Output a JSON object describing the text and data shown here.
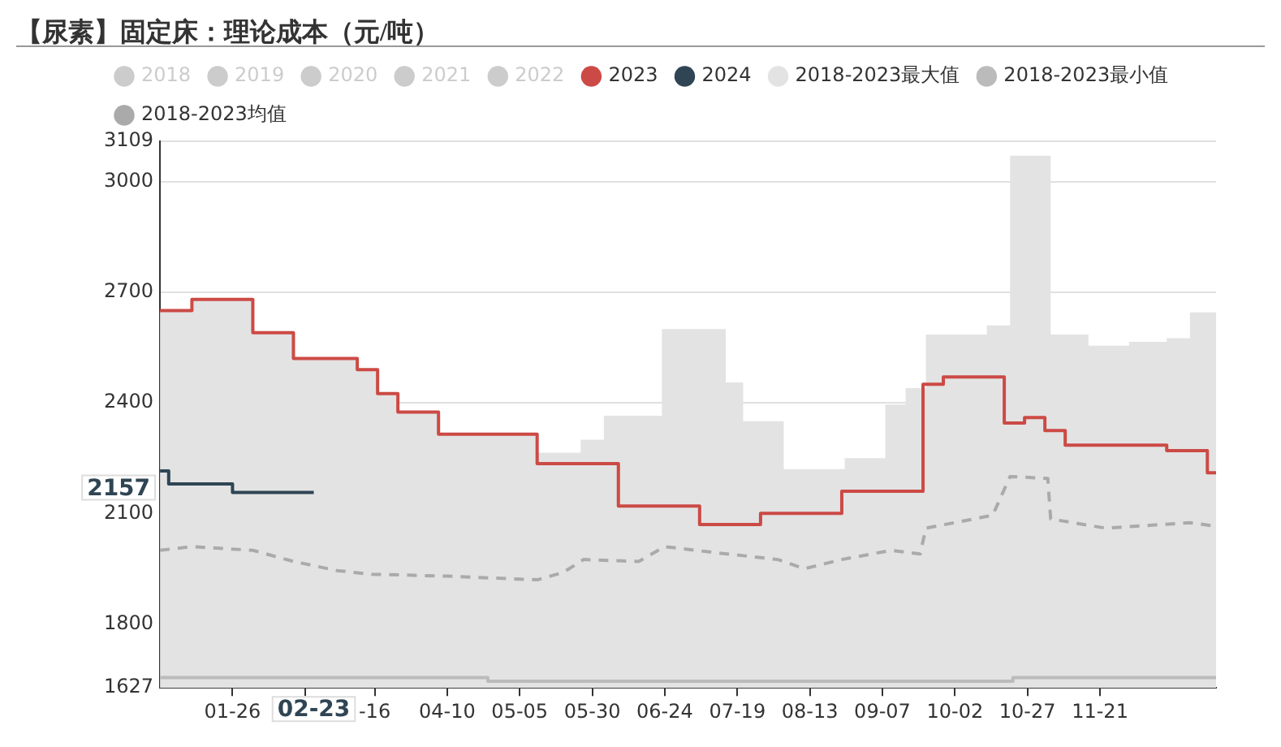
{
  "chart_data": {
    "type": "step",
    "title": "【尿素】固定床：理论成本（元/吨）",
    "xlim": [
      "--01-01",
      "--12-31"
    ],
    "xticks": [
      {
        "value": "--01-26",
        "label": "01-26"
      },
      {
        "value": "--02-20",
        "label": null
      },
      {
        "value": "--03-16",
        "label": "-16"
      },
      {
        "value": "--04-10",
        "label": "04-10"
      },
      {
        "value": "--05-05",
        "label": "05-05"
      },
      {
        "value": "--05-30",
        "label": "05-30"
      },
      {
        "value": "--06-24",
        "label": "06-24"
      },
      {
        "value": "--07-19",
        "label": "07-19"
      },
      {
        "value": "--08-13",
        "label": "08-13"
      },
      {
        "value": "--09-07",
        "label": "09-07"
      },
      {
        "value": "--10-02",
        "label": "10-02"
      },
      {
        "value": "--10-27",
        "label": "10-27"
      },
      {
        "value": "--11-21",
        "label": "11-21"
      }
    ],
    "ylim": [
      1627,
      3109
    ],
    "yticks": [
      1627,
      1800,
      2100,
      2400,
      2700,
      3000,
      3109
    ],
    "grid": "y",
    "legend": "top left",
    "marker": "none",
    "annotations": [
      "2157",
      "02-23"
    ],
    "series": [
      {
        "name": "2018",
        "color": "#cccccc"
      },
      {
        "name": "2019",
        "color": "#cccccc"
      },
      {
        "name": "2020",
        "color": "#cccccc"
      },
      {
        "name": "2021",
        "color": "#cccccc"
      },
      {
        "name": "2022",
        "color": "#cccccc"
      },
      {
        "name": "2023",
        "type": "step",
        "color": "#cc4a45",
        "x": [
          "--01-01",
          "--01-12",
          "--02-02",
          "--02-16",
          "--03-10",
          "--03-17",
          "--03-24",
          "--04-07",
          "--05-11",
          "--06-08",
          "--07-06",
          "--07-27",
          "--08-24",
          "--09-21",
          "--09-28",
          "--10-19",
          "--10-26",
          "--11-02",
          "--11-09",
          "--12-14",
          "--12-28",
          "--12-31"
        ],
        "values": [
          2650,
          2680,
          2590,
          2520,
          2490,
          2425,
          2375,
          2315,
          2235,
          2120,
          2070,
          2100,
          2160,
          2450,
          2470,
          2345,
          2360,
          2325,
          2285,
          2270,
          2210,
          2210
        ]
      },
      {
        "name": "2024",
        "type": "step",
        "color": "#2f4554",
        "x": [
          "--01-01",
          "--01-04",
          "--01-26",
          "--02-23"
        ],
        "values": [
          2215,
          2180,
          2157,
          2157
        ]
      },
      {
        "name": "2018-2023最大值",
        "type": "area",
        "color": "#e3e3e3",
        "x": [
          "--01-01",
          "--01-12",
          "--02-02",
          "--02-16",
          "--03-10",
          "--03-17",
          "--03-24",
          "--04-07",
          "--05-11",
          "--05-26",
          "--06-03",
          "--06-23",
          "--07-15",
          "--07-21",
          "--08-04",
          "--08-25",
          "--09-08",
          "--09-15",
          "--09-22",
          "--10-13",
          "--10-21",
          "--11-04",
          "--11-17",
          "--12-01",
          "--12-14",
          "--12-22",
          "--12-31"
        ],
        "values": [
          2650,
          2680,
          2590,
          2520,
          2490,
          2425,
          2375,
          2315,
          2265,
          2300,
          2365,
          2600,
          2455,
          2350,
          2220,
          2250,
          2395,
          2440,
          2585,
          2610,
          3070,
          2585,
          2555,
          2565,
          2575,
          2645,
          2645
        ]
      },
      {
        "name": "2018-2023最小值",
        "type": "step",
        "color": "#bbbbbb",
        "x": [
          "--01-01",
          "--04-24",
          "--10-22",
          "--12-31"
        ],
        "values": [
          1655,
          1645,
          1655,
          1655
        ]
      },
      {
        "name": "2018-2023均值",
        "type": "line",
        "line_style": "dashed",
        "color": "#aaaaaa",
        "x": [
          "--01-01",
          "--01-12",
          "--02-02",
          "--02-16",
          "--03-03",
          "--03-15",
          "--04-10",
          "--05-11",
          "--05-20",
          "--05-27",
          "--06-15",
          "--06-24",
          "--07-10",
          "--08-02",
          "--08-11",
          "--08-24",
          "--09-10",
          "--09-20",
          "--09-22",
          "--10-15",
          "--10-21",
          "--11-03",
          "--11-04",
          "--11-23",
          "--12-22",
          "--12-31"
        ],
        "values": [
          2000,
          2010,
          2000,
          1970,
          1945,
          1935,
          1930,
          1920,
          1940,
          1975,
          1970,
          2010,
          1995,
          1975,
          1950,
          1975,
          2000,
          1990,
          2060,
          2095,
          2200,
          2195,
          2085,
          2060,
          2075,
          2065
        ]
      }
    ]
  }
}
